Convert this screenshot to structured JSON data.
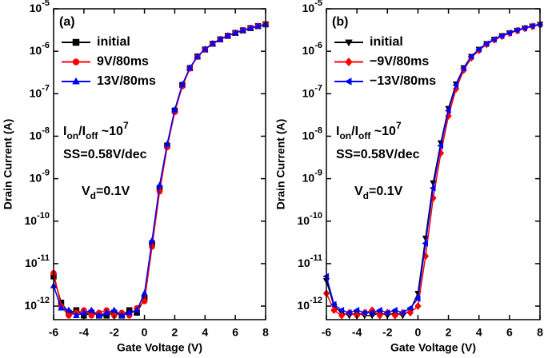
{
  "chart_data": [
    {
      "type": "line",
      "panel_label": "(a)",
      "xlabel": "Gate Voltage  (V)",
      "ylabel": "Drain Current (A)",
      "log_y": true,
      "xlim": [
        -6,
        8
      ],
      "xticks": [
        -6,
        -4,
        -2,
        0,
        2,
        4,
        6,
        8
      ],
      "ylim": [
        4.8e-13,
        1e-05
      ],
      "yticks": [
        {
          "value": 1e-12,
          "label": "10",
          "sup": "-12"
        },
        {
          "value": 1e-11,
          "label": "10",
          "sup": "-11"
        },
        {
          "value": 1e-10,
          "label": "10",
          "sup": "-10"
        },
        {
          "value": 1e-09,
          "label": "10",
          "sup": "-9"
        },
        {
          "value": 1e-08,
          "label": "10",
          "sup": "-8"
        },
        {
          "value": 1e-07,
          "label": "10",
          "sup": "-7"
        },
        {
          "value": 1e-06,
          "label": "10",
          "sup": "-6"
        },
        {
          "value": 1e-05,
          "label": "10",
          "sup": "-5"
        }
      ],
      "x": [
        -6,
        -5.5,
        -5,
        -4.5,
        -4,
        -3.5,
        -3,
        -2.5,
        -2,
        -1.5,
        -1,
        -0.5,
        0,
        0.5,
        1,
        1.5,
        2,
        2.5,
        3,
        3.5,
        4,
        4.5,
        5,
        5.5,
        6,
        6.5,
        7,
        7.5,
        8
      ],
      "series": [
        {
          "name": "initial",
          "color": "#000000",
          "marker": "square",
          "values": [
            5e-12,
            1.2e-12,
            7e-13,
            8e-13,
            6e-13,
            7e-13,
            6e-13,
            6e-13,
            7e-13,
            6e-13,
            8e-13,
            7e-13,
            1.5e-12,
            3e-11,
            6e-10,
            6e-09,
            4e-08,
            1.6e-07,
            4e-07,
            7.5e-07,
            1.1e-06,
            1.5e-06,
            1.9e-06,
            2.3e-06,
            2.7e-06,
            3.1e-06,
            3.5e-06,
            3.9e-06,
            4.3e-06
          ]
        },
        {
          "name": "9V/80ms",
          "color": "#ff0000",
          "marker": "circle",
          "values": [
            6e-12,
            1e-12,
            6e-13,
            7e-13,
            8e-13,
            6e-13,
            7e-13,
            8e-13,
            6e-13,
            7e-13,
            6e-13,
            9e-13,
            1.3e-12,
            2.5e-11,
            5e-10,
            5.5e-09,
            3.7e-08,
            1.5e-07,
            3.9e-07,
            7.4e-07,
            1.1e-06,
            1.5e-06,
            1.9e-06,
            2.3e-06,
            2.7e-06,
            3.1e-06,
            3.5e-06,
            3.9e-06,
            4.3e-06
          ]
        },
        {
          "name": "13V/80ms",
          "color": "#0000ff",
          "marker": "triangle-up",
          "values": [
            3e-12,
            9e-13,
            8e-13,
            6e-13,
            7e-13,
            8e-13,
            6e-13,
            7e-13,
            8e-13,
            6e-13,
            7e-13,
            8e-13,
            2e-12,
            3.5e-11,
            7e-10,
            6.5e-09,
            4.2e-08,
            1.65e-07,
            4.1e-07,
            7.6e-07,
            1.12e-06,
            1.52e-06,
            1.92e-06,
            2.32e-06,
            2.72e-06,
            3.12e-06,
            3.52e-06,
            3.92e-06,
            4.3e-06
          ]
        }
      ],
      "annotations": [
        [
          {
            "text": "I"
          },
          {
            "text": "on",
            "style": "sub"
          },
          {
            "text": "/I"
          },
          {
            "text": "off",
            "style": "sub"
          },
          {
            "text": " ~10"
          },
          {
            "text": "7",
            "style": "sup"
          }
        ],
        [
          {
            "text": "SS=0.58V/dec"
          }
        ],
        [
          {
            "text": "V"
          },
          {
            "text": "d",
            "style": "sub"
          },
          {
            "text": "=0.1V"
          }
        ]
      ]
    },
    {
      "type": "line",
      "panel_label": "(b)",
      "xlabel": "Gate Voltage  (V)",
      "ylabel": "Drain Current (A)",
      "log_y": true,
      "xlim": [
        -6,
        8
      ],
      "xticks": [
        -6,
        -4,
        -2,
        0,
        2,
        4,
        6,
        8
      ],
      "ylim": [
        4.8e-13,
        1e-05
      ],
      "yticks": [
        {
          "value": 1e-12,
          "label": "10",
          "sup": "-12"
        },
        {
          "value": 1e-11,
          "label": "10",
          "sup": "-11"
        },
        {
          "value": 1e-10,
          "label": "10",
          "sup": "-10"
        },
        {
          "value": 1e-09,
          "label": "10",
          "sup": "-9"
        },
        {
          "value": 1e-08,
          "label": "10",
          "sup": "-8"
        },
        {
          "value": 1e-07,
          "label": "10",
          "sup": "-7"
        },
        {
          "value": 1e-06,
          "label": "10",
          "sup": "-6"
        },
        {
          "value": 1e-05,
          "label": "10",
          "sup": "-5"
        }
      ],
      "x": [
        -6,
        -5.5,
        -5,
        -4.5,
        -4,
        -3.5,
        -3,
        -2.5,
        -2,
        -1.5,
        -1,
        -0.5,
        0,
        0.5,
        1,
        1.5,
        2,
        2.5,
        3,
        3.5,
        4,
        4.5,
        5,
        5.5,
        6,
        6.5,
        7,
        7.5,
        8
      ],
      "series": [
        {
          "name": "initial",
          "color": "#000000",
          "marker": "triangle-down",
          "values": [
            4e-12,
            1e-12,
            7e-13,
            6e-13,
            7e-13,
            6e-13,
            6e-13,
            7e-13,
            6e-13,
            7e-13,
            6e-13,
            8e-13,
            2e-12,
            4e-11,
            8e-10,
            7e-09,
            4.5e-08,
            1.7e-07,
            4.1e-07,
            7.6e-07,
            1.12e-06,
            1.52e-06,
            1.92e-06,
            2.32e-06,
            2.72e-06,
            3.12e-06,
            3.52e-06,
            3.92e-06,
            4.3e-06
          ]
        },
        {
          "name": "−9V/80ms",
          "color": "#ff0000",
          "marker": "diamond",
          "values": [
            2e-12,
            8e-13,
            6e-13,
            7e-13,
            6e-13,
            7e-13,
            8e-13,
            6e-13,
            7e-13,
            6e-13,
            7e-13,
            7e-13,
            1e-12,
            1.5e-11,
            3.5e-10,
            4e-09,
            3e-08,
            1.3e-07,
            3.6e-07,
            7e-07,
            1.05e-06,
            1.45e-06,
            1.85e-06,
            2.25e-06,
            2.65e-06,
            3.05e-06,
            3.45e-06,
            3.85e-06,
            4.2e-06
          ]
        },
        {
          "name": "−13V/80ms",
          "color": "#0000ff",
          "marker": "triangle-left",
          "values": [
            5e-12,
            1.1e-12,
            8e-13,
            7e-13,
            8e-13,
            7e-13,
            7e-13,
            8e-13,
            7e-13,
            8e-13,
            7e-13,
            9e-13,
            1.5e-12,
            3e-11,
            6e-10,
            6e-09,
            4e-08,
            1.6e-07,
            4e-07,
            7.5e-07,
            1.1e-06,
            1.5e-06,
            1.9e-06,
            2.3e-06,
            2.7e-06,
            3.1e-06,
            3.5e-06,
            3.9e-06,
            4.3e-06
          ]
        }
      ],
      "annotations": [
        [
          {
            "text": "I"
          },
          {
            "text": "on",
            "style": "sub"
          },
          {
            "text": "/I"
          },
          {
            "text": "off",
            "style": "sub"
          },
          {
            "text": " ~10"
          },
          {
            "text": "7",
            "style": "sup"
          }
        ],
        [
          {
            "text": "SS=0.58V/dec"
          }
        ],
        [
          {
            "text": "V"
          },
          {
            "text": "d",
            "style": "sub"
          },
          {
            "text": "=0.1V"
          }
        ]
      ]
    }
  ]
}
